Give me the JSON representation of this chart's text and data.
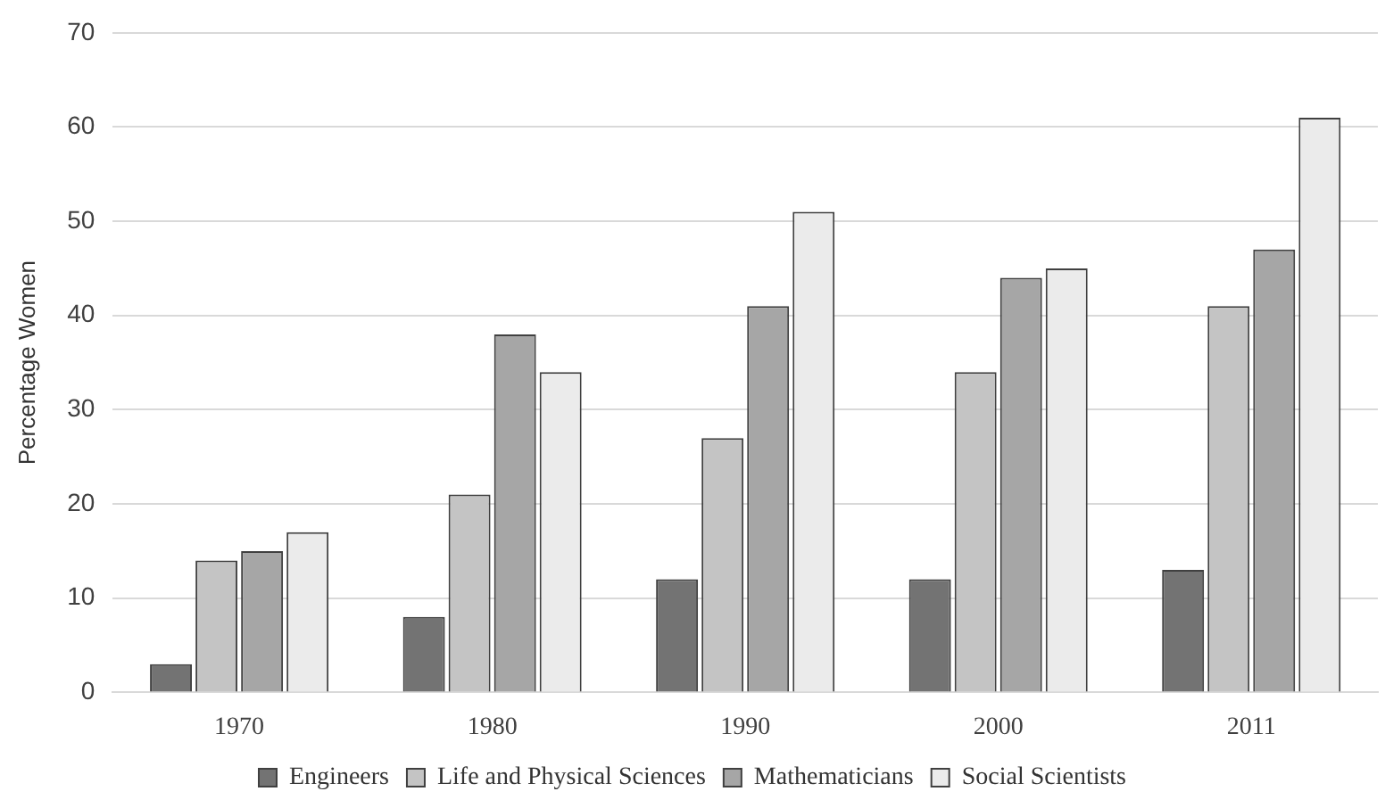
{
  "chart_data": {
    "type": "bar",
    "ylabel": "Percentage Women",
    "categories": [
      "1970",
      "1980",
      "1990",
      "2000",
      "2011"
    ],
    "series": [
      {
        "name": "Engineers",
        "color": "#737373",
        "values": [
          3,
          8,
          12,
          12,
          13
        ]
      },
      {
        "name": "Life and Physical Sciences",
        "color": "#c4c4c4",
        "values": [
          14,
          21,
          27,
          34,
          41
        ]
      },
      {
        "name": "Mathematicians",
        "color": "#a6a6a6",
        "values": [
          15,
          38,
          41,
          44,
          47
        ]
      },
      {
        "name": "Social Scientists",
        "color": "#ebebeb",
        "values": [
          17,
          34,
          51,
          45,
          61
        ]
      }
    ],
    "ylim": [
      0,
      70
    ],
    "yticks": [
      0,
      10,
      20,
      30,
      40,
      50,
      60,
      70
    ],
    "grid": "y",
    "legend": "bottom"
  }
}
